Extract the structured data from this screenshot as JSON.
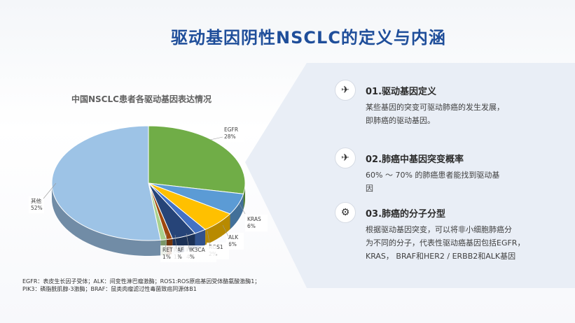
{
  "slide": {
    "title": "驱动基因阴性NSCLC的定义与内涵"
  },
  "chart_data": {
    "type": "pie",
    "title": "中国NSCLC患者各驱动基因表达情况",
    "slices": [
      {
        "name": "EGFR",
        "percent_label": "28%",
        "value": 28,
        "color": "#70ad47"
      },
      {
        "name": "KRAS",
        "percent_label": "6%",
        "value": 6,
        "color": "#5b9bd5"
      },
      {
        "name": "ALK",
        "percent_label": "6%",
        "value": 6,
        "color": "#ffc000"
      },
      {
        "name": "ROS1",
        "percent_label": "2%",
        "value": 2,
        "color": "#4472c4"
      },
      {
        "name": "PIK3CA",
        "percent_label": "4%",
        "value": 4,
        "color": "#264478"
      },
      {
        "name": "RAF",
        "percent_label": "1%",
        "value": 1,
        "color": "#9e480e"
      },
      {
        "name": "RET",
        "percent_label": "1%",
        "value": 1,
        "color": "#a9d18e"
      },
      {
        "name": "其他",
        "percent_label": "52%",
        "value": 52,
        "color": "#9dc3e6"
      }
    ]
  },
  "sections": [
    {
      "icon": "pin-icon",
      "title": "01.驱动基因定义",
      "lines": [
        "某些基因的突变可驱动肺癌的发生发展，",
        "即肺癌的驱动基因。"
      ]
    },
    {
      "icon": "pin-icon",
      "title": "02.肺癌中基因突变概率",
      "lines": [
        "60% ～ 70% 的肺癌患者能找到驱动基",
        "因"
      ]
    },
    {
      "icon": "gear-icon",
      "title": "03.肺癌的分子分型",
      "lines": [
        "根据驱动基因突变，可以将非小细胞肺癌分",
        "为不同的分子，代表性驱动癌基因包括EGFR，",
        "KRAS， BRAF和HER2 / ERBB2和ALK基因"
      ]
    }
  ],
  "footnote": {
    "lines": [
      "EGFR：表皮生长因子受体；ALK：间变性淋巴瘤激酶；ROS1:ROS原癌基因受体酪氨酸激酶1；",
      "PIK3：磷脂酰肌醇-3激酶；BRAF：鼠类肉瘤滤过性毒菌致癌同源体B1"
    ]
  }
}
